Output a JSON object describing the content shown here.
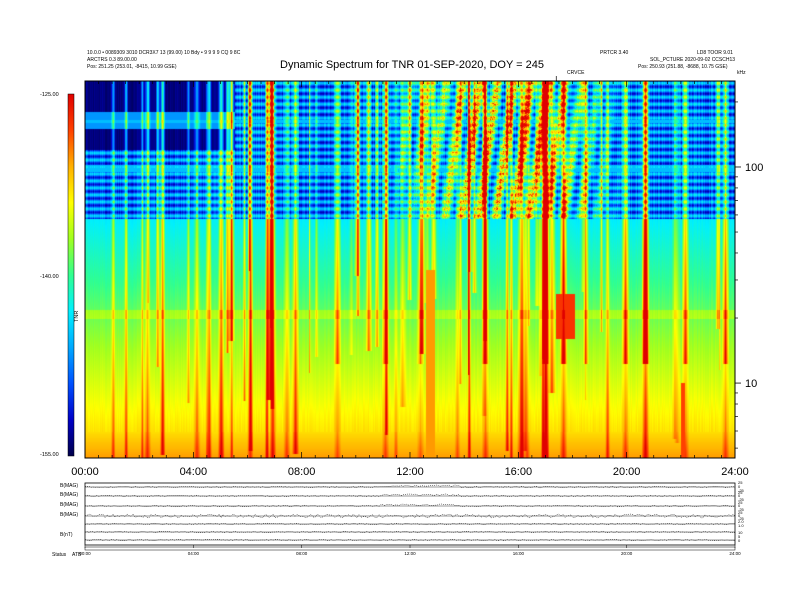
{
  "header": {
    "left_line1": "10.0.0 • 0089309 3010 DCR3X7 13 (99.00) 10 Bdy • 9 9 9 9 CQ 9 8C",
    "left_line2": "ARCTRS 0.3 89.00.00",
    "left_pos": "Pos:    251.25 (253.01, -8415, 10.99 GSE)",
    "right_line1a": "PRTCR 3.40",
    "right_line1b": "LD8 TOOR 9.01",
    "right_line2": "SOL_PCTURE 2020-09-02 CCSCH13",
    "right_pos": "Pos:    250.93 (251.88, -8688, 10.75 GSE)",
    "marker_label": "CRVCE",
    "corner_label": "kHz"
  },
  "chart_data": {
    "type": "heatmap",
    "title": "Dynamic Spectrum for TNR 01-SEP-2020, DOY = 245",
    "xlabel": "",
    "ylabel": "",
    "x_ticks": [
      "00:00",
      "04:00",
      "08:00",
      "12:00",
      "16:00",
      "20:00",
      "24:00"
    ],
    "x_range_hours": [
      0,
      24
    ],
    "y_scale": "log",
    "y_range_khz": [
      4.5,
      250
    ],
    "y_ticks": [
      {
        "value": 10,
        "label": "10"
      },
      {
        "value": 100,
        "label": "100"
      }
    ],
    "colorbar": {
      "label": "TNR",
      "range": [
        -155.0,
        -125.0
      ],
      "ticks": [
        "-125.00",
        "-140.00",
        "-155.00"
      ],
      "colormap": [
        "#00004a",
        "#0000c8",
        "#0050ff",
        "#00a8ff",
        "#00f0ff",
        "#30ff90",
        "#a0ff20",
        "#ffff00",
        "#ffb000",
        "#ff4000",
        "#e00000"
      ]
    },
    "bottom_panels": {
      "labels": [
        "B(MAG)",
        "B(MAG)",
        "B(MAG)",
        "B(MAG)",
        "B(nT)"
      ],
      "footer_label": "Status",
      "footer_value": "ATB",
      "right_ticks": [
        "25",
        "0",
        "-25",
        "25",
        "0",
        "-25",
        "25",
        "0",
        "-25",
        "25",
        "0",
        "-25",
        "2.0",
        "1.0",
        "10",
        "5",
        "0"
      ]
    }
  }
}
